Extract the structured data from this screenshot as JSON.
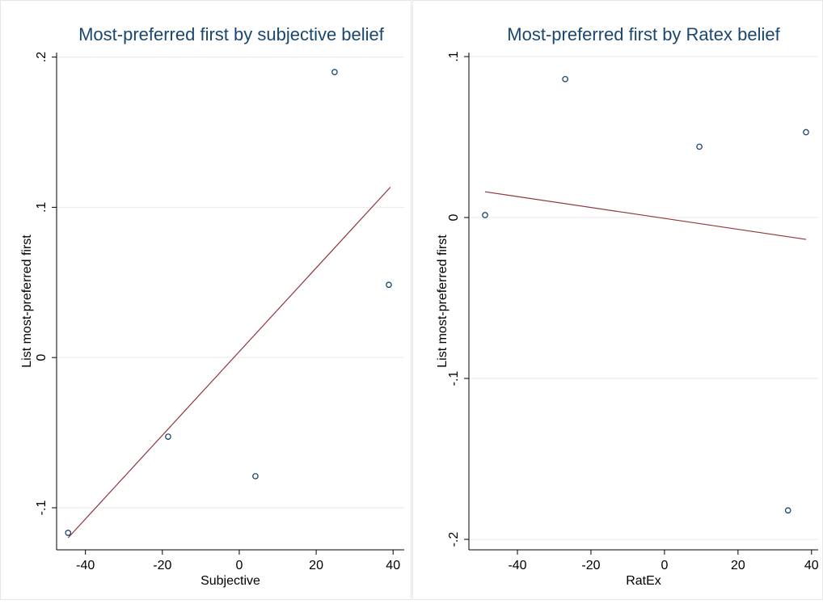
{
  "chart_data": [
    {
      "type": "scatter",
      "title": "Most-preferred first by subjective belief",
      "x_label": "Subjective",
      "y_label": "List most-preferred first",
      "xlim": [
        -47.5,
        42.9
      ],
      "ylim": [
        -0.128,
        0.203
      ],
      "xticks": [
        -40,
        -20,
        0,
        20,
        40
      ],
      "yticks": [
        {
          "value": -0.1,
          "label": "-.1"
        },
        0,
        {
          "value": 0.1,
          "label": ".1"
        },
        {
          "value": 0.2,
          "label": ".2"
        }
      ],
      "grid": true,
      "points": {
        "color": "#1a476f",
        "x": [
          -44.5,
          -18.5,
          4.2,
          24.8,
          38.9
        ],
        "y": [
          -0.1167,
          -0.0527,
          -0.079,
          0.19,
          0.0484
        ]
      },
      "fit_line": {
        "color": "#90353b",
        "x": [
          -44.5,
          39.3
        ],
        "y": [
          -0.12,
          0.1134
        ]
      }
    },
    {
      "type": "scatter",
      "title": "Most-preferred first by Ratex belief",
      "x_label": "RatEx",
      "y_label": "List most-preferred first",
      "xlim": [
        -53.2,
        41.8
      ],
      "ylim": [
        -0.2065,
        0.1025
      ],
      "xticks": [
        -40,
        -20,
        0,
        20,
        40
      ],
      "yticks": [
        {
          "value": -0.2,
          "label": "-.2"
        },
        {
          "value": -0.1,
          "label": "-.1"
        },
        0,
        {
          "value": 0.1,
          "label": ".1"
        }
      ],
      "grid": true,
      "points": {
        "color": "#1a476f",
        "x": [
          -48.8,
          -27.0,
          9.5,
          38.5,
          33.6
        ],
        "y": [
          0.0015,
          0.086,
          0.044,
          0.053,
          -0.182
        ]
      },
      "fit_line": {
        "color": "#90353b",
        "x": [
          -48.8,
          38.5
        ],
        "y": [
          0.016,
          -0.0136
        ]
      }
    }
  ]
}
